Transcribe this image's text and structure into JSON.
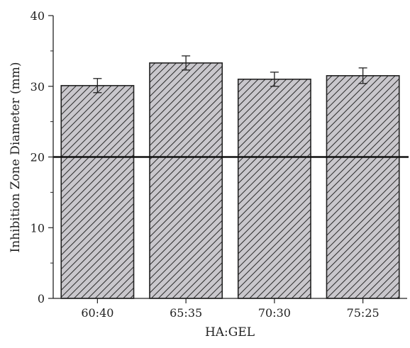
{
  "chart_data": {
    "type": "bar",
    "title": "",
    "xlabel": "HA:GEL",
    "ylabel": "Inhibition Zone Diameter (mm)",
    "categories": [
      "60:40",
      "65:35",
      "70:30",
      "75:25"
    ],
    "values": [
      30.1,
      33.3,
      31.0,
      31.5
    ],
    "errors": [
      1.0,
      1.0,
      1.0,
      1.1
    ],
    "ylim": [
      0,
      40
    ],
    "yticks": [
      0,
      10,
      20,
      30,
      40
    ],
    "reference_line": {
      "y": 20
    },
    "grid": false,
    "legend": "none",
    "bar_fill": "#c9c7cc",
    "hatch": "diagonal",
    "colors": {
      "bar_edge": "#222222",
      "hatch_line": "#2a2a2a",
      "axis": "#222222",
      "reference_line": "#111111"
    }
  }
}
